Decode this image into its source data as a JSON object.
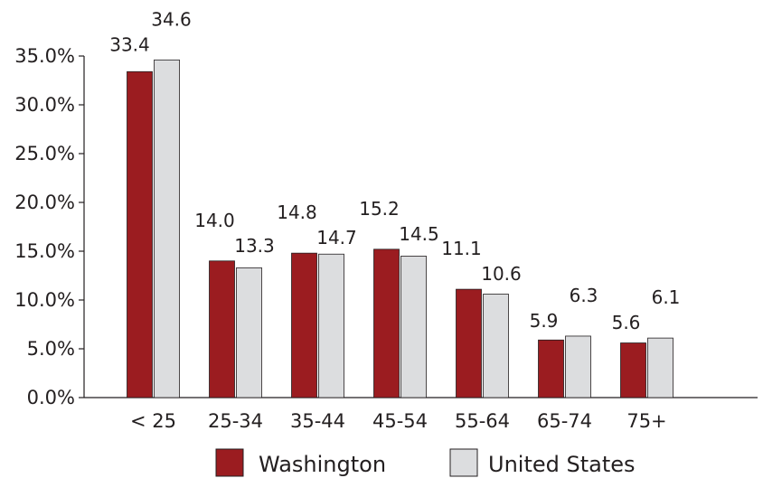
{
  "chart_data": {
    "type": "bar",
    "title": "",
    "xlabel": "",
    "ylabel": "",
    "categories": [
      "< 25",
      "25-34",
      "35-44",
      "45-54",
      "55-64",
      "65-74",
      "75+"
    ],
    "series": [
      {
        "name": "Washington",
        "values": [
          33.4,
          14.0,
          14.8,
          15.2,
          11.1,
          5.9,
          5.6
        ],
        "labels": [
          "33.4",
          "14.0",
          "14.8",
          "15.2",
          "11.1",
          "5.9",
          "5.6"
        ]
      },
      {
        "name": "United States",
        "values": [
          34.6,
          13.3,
          14.7,
          14.5,
          10.6,
          6.3,
          6.1
        ],
        "labels": [
          "34.6",
          "13.3",
          "14.7",
          "14.5",
          "10.6",
          "6.3",
          "6.1"
        ]
      }
    ],
    "ylim": [
      0,
      35
    ],
    "yticks": [
      0,
      5,
      10,
      15,
      20,
      25,
      30,
      35
    ],
    "ytick_labels": [
      "0.0%",
      "5.0%",
      "10.0%",
      "15.0%",
      "20.0%",
      "25.0%",
      "30.0%",
      "35.0%"
    ],
    "grid": false,
    "legend_position": "bottom",
    "colors": {
      "Washington": "#9b1c20",
      "United States": "#dcdddf",
      "bar_stroke": "#231f20",
      "axis": "#231f20"
    }
  }
}
